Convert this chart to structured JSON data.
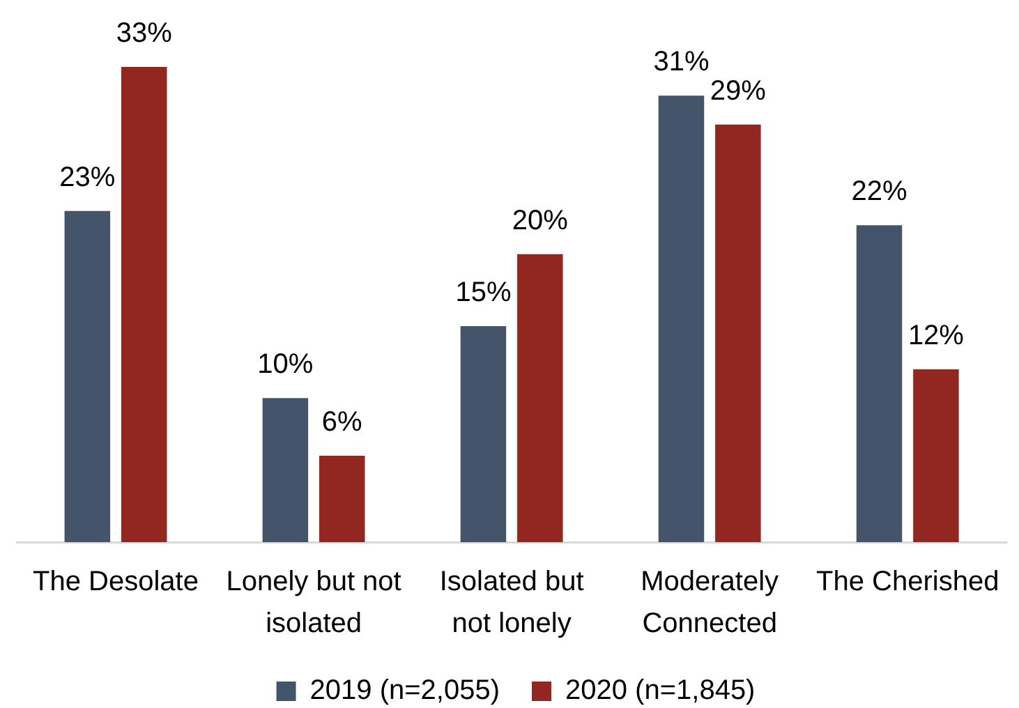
{
  "chart_data": {
    "type": "bar",
    "categories": [
      "The Desolate",
      "Lonely but not isolated",
      "Isolated but not lonely",
      "Moderately Connected",
      "The Cherished"
    ],
    "series": [
      {
        "name": "2019 (n=2,055)",
        "color": "#44546a",
        "values": [
          23,
          10,
          15,
          31,
          22
        ],
        "value_labels": [
          "23%",
          "10%",
          "15%",
          "31%",
          "22%"
        ]
      },
      {
        "name": "2020 (n=1,845)",
        "color": "#922621",
        "values": [
          33,
          6,
          20,
          29,
          12
        ],
        "value_labels": [
          "33%",
          "6%",
          "20%",
          "29%",
          "12%"
        ]
      }
    ],
    "legend": "bottom"
  }
}
